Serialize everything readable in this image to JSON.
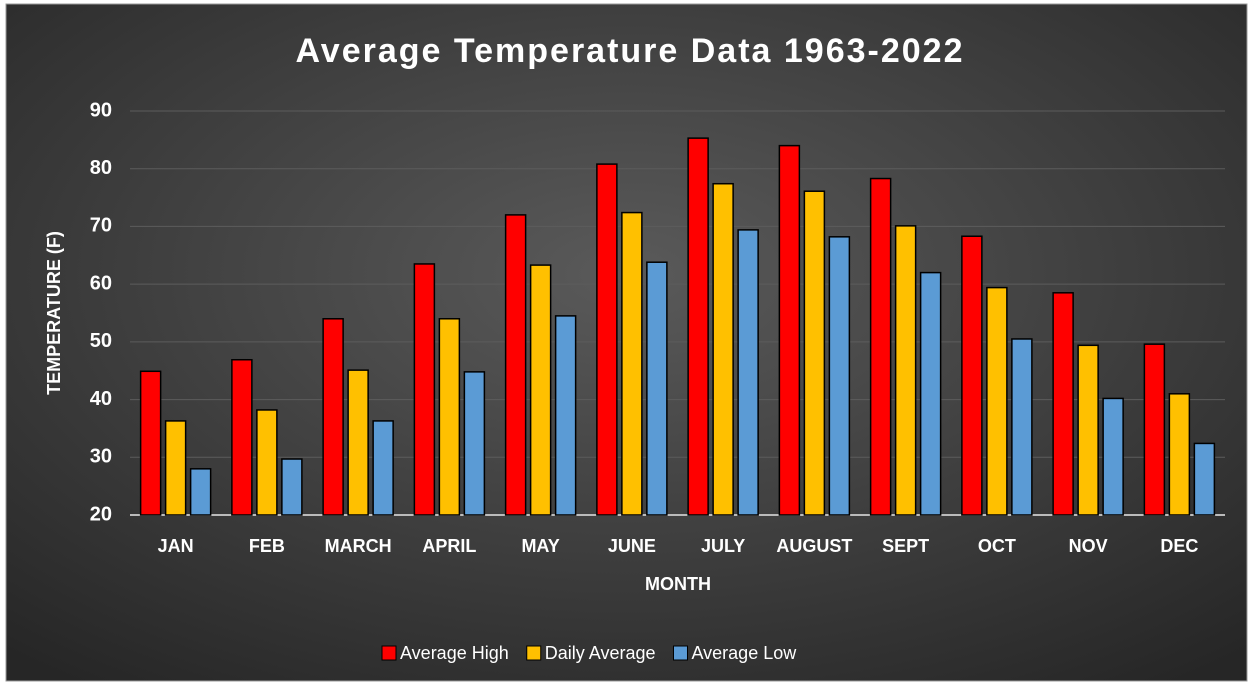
{
  "chart_data": {
    "type": "bar",
    "title": "Average Temperature Data 1963-2022",
    "x_label": "MONTH",
    "y_label": "TEMPERATURE (F)",
    "categories": [
      "JAN",
      "FEB",
      "MARCH",
      "APRIL",
      "MAY",
      "JUNE",
      "JULY",
      "AUGUST",
      "SEPT",
      "OCT",
      "NOV",
      "DEC"
    ],
    "series": [
      {
        "name": "Average High",
        "color": "#ff0000",
        "values": [
          44.9,
          46.9,
          54,
          63.5,
          72,
          80.8,
          85.3,
          84,
          78.3,
          68.3,
          58.5,
          49.6
        ]
      },
      {
        "name": "Daily Average",
        "color": "#ffc000",
        "values": [
          36.3,
          38.2,
          45.1,
          54,
          63.3,
          72.4,
          77.4,
          76.1,
          70.1,
          59.4,
          49.4,
          41
        ]
      },
      {
        "name": "Average Low",
        "color": "#5b9bd5",
        "values": [
          28,
          29.7,
          36.3,
          44.8,
          54.5,
          63.8,
          69.4,
          68.2,
          62,
          50.5,
          40.2,
          32.4
        ]
      }
    ],
    "ylim": [
      20,
      90
    ],
    "yticks": [
      20,
      30,
      40,
      50,
      60,
      70,
      80,
      90
    ],
    "grid": true,
    "legend": "bottom"
  }
}
